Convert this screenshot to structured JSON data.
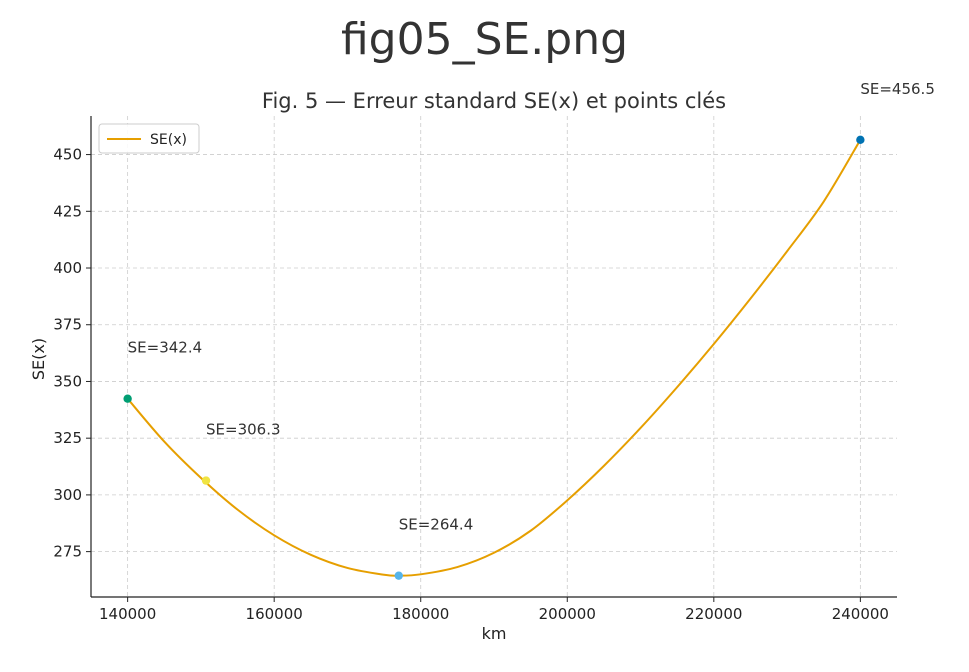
{
  "page": {
    "title": "fig05_SE.png"
  },
  "chart_data": {
    "type": "line",
    "title": "Fig. 5 — Erreur standard SE(x) et points clés",
    "xlabel": "km",
    "ylabel": "SE(x)",
    "xlim": [
      135000,
      245000
    ],
    "ylim": [
      255,
      467
    ],
    "xticks": [
      140000,
      160000,
      180000,
      200000,
      220000,
      240000
    ],
    "yticks": [
      275,
      300,
      325,
      350,
      375,
      400,
      425,
      450
    ],
    "grid": true,
    "legend": {
      "placement": "top-left",
      "entries": [
        "SE(x)"
      ]
    },
    "series": [
      {
        "name": "SE(x)",
        "color": "#E69F00",
        "x": [
          140000,
          145000,
          150000,
          155000,
          160000,
          165000,
          170000,
          175000,
          177000,
          180000,
          185000,
          190000,
          195000,
          200000,
          205000,
          210000,
          215000,
          220000,
          225000,
          230000,
          235000,
          240000
        ],
        "y": [
          342.4,
          323.5,
          307.5,
          293.5,
          282.2,
          273.6,
          267.8,
          264.8,
          264.4,
          265.0,
          268.2,
          274.5,
          284.2,
          297.6,
          312.8,
          329.5,
          347.5,
          366.5,
          386.5,
          407.4,
          429.3,
          456.5
        ]
      }
    ],
    "points": [
      {
        "x": 140000,
        "y": 342.4,
        "label": "SE=342.4",
        "color": "#009E73"
      },
      {
        "x": 150700,
        "y": 306.3,
        "label": "SE=306.3",
        "color": "#F0E442"
      },
      {
        "x": 177000,
        "y": 264.4,
        "label": "SE=264.4",
        "color": "#56B4E9"
      },
      {
        "x": 240000,
        "y": 456.5,
        "label": "SE=456.5",
        "color": "#0072B2"
      }
    ]
  }
}
